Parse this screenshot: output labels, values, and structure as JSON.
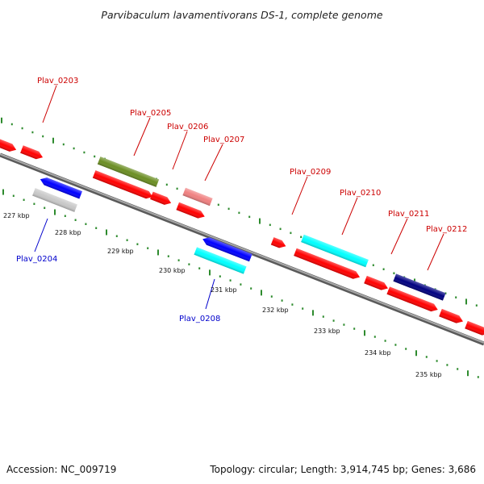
{
  "title": "Parvibaculum lavamentivorans DS-1, complete genome",
  "footer": {
    "accession": "Accession: NC_009719",
    "summary": "Topology: circular; Length: 3,914,745 bp; Genes: 3,686"
  },
  "colors": {
    "forward_label": "#cc0000",
    "reverse_label": "#0000cc",
    "tick": "#2e8b2e",
    "backbone": "#8a8a8a"
  },
  "kbp_labels": [
    "227 kbp",
    "228 kbp",
    "229 kbp",
    "230 kbp",
    "231 kbp",
    "232 kbp",
    "233 kbp",
    "234 kbp",
    "235 kbp"
  ],
  "gene_labels": [
    {
      "text": "Plav_0203",
      "strand": "forward"
    },
    {
      "text": "Plav_0204",
      "strand": "reverse"
    },
    {
      "text": "Plav_0205",
      "strand": "forward"
    },
    {
      "text": "Plav_0206",
      "strand": "forward"
    },
    {
      "text": "Plav_0207",
      "strand": "forward"
    },
    {
      "text": "Plav_0208",
      "strand": "reverse"
    },
    {
      "text": "Plav_0209",
      "strand": "forward"
    },
    {
      "text": "Plav_0210",
      "strand": "forward"
    },
    {
      "text": "Plav_0211",
      "strand": "forward"
    },
    {
      "text": "Plav_0212",
      "strand": "forward"
    }
  ],
  "features": [
    {
      "name": "red",
      "color": "#ff0000"
    },
    {
      "name": "olive",
      "color": "#6b8e23"
    },
    {
      "name": "blue",
      "color": "#0000ff"
    },
    {
      "name": "gray",
      "color": "#c8c8c8"
    },
    {
      "name": "salmon",
      "color": "#f08080"
    },
    {
      "name": "cyan",
      "color": "#00ffff"
    },
    {
      "name": "navy",
      "color": "#000080"
    }
  ]
}
